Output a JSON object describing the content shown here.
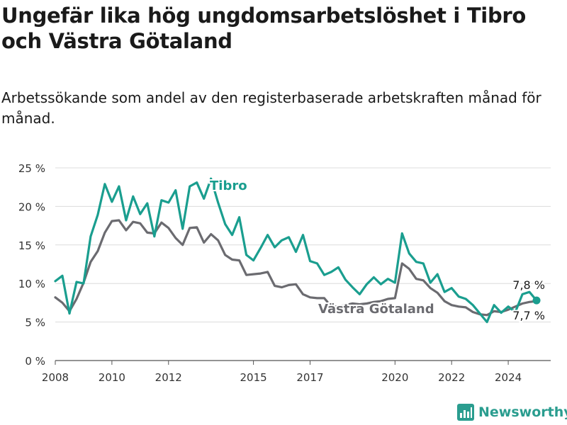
{
  "title": "Ungefär lika hög ungdomsarbetslöshet i Tibro och Västra Götaland",
  "subtitle": "Arbetssökande som andel av den registerbaserade arbetskraften månad för månad.",
  "brand": {
    "name": "Newsworthy",
    "color": "#2a9d8f"
  },
  "chart_data": {
    "type": "line",
    "title": "Ungefär lika hög ungdomsarbetslöshet i Tibro och Västra Götaland",
    "xlabel": "",
    "ylabel": "",
    "x_ticks": [
      "2008",
      "2010",
      "2012",
      "2015",
      "2017",
      "2020",
      "2022",
      "2024"
    ],
    "y_ticks": [
      "0 %",
      "5 %",
      "10 %",
      "15 %",
      "20 %",
      "25 %"
    ],
    "ylim": [
      0,
      25
    ],
    "xlim": [
      "2008-01",
      "2025-07"
    ],
    "grid": true,
    "series": [
      {
        "name": "Tibro",
        "color": "#1a9e8f",
        "end_label": "7,8 %",
        "points": [
          [
            "2008-01",
            10.3
          ],
          [
            "2008-04",
            11.0
          ],
          [
            "2008-07",
            6.1
          ],
          [
            "2008-10",
            10.2
          ],
          [
            "2009-01",
            10.0
          ],
          [
            "2009-04",
            16.1
          ],
          [
            "2009-07",
            18.9
          ],
          [
            "2009-10",
            22.9
          ],
          [
            "2010-01",
            20.6
          ],
          [
            "2010-04",
            22.6
          ],
          [
            "2010-07",
            18.2
          ],
          [
            "2010-10",
            21.3
          ],
          [
            "2011-01",
            19.0
          ],
          [
            "2011-04",
            20.4
          ],
          [
            "2011-07",
            16.1
          ],
          [
            "2011-10",
            20.8
          ],
          [
            "2012-01",
            20.5
          ],
          [
            "2012-04",
            22.1
          ],
          [
            "2012-07",
            17.1
          ],
          [
            "2012-10",
            22.6
          ],
          [
            "2013-01",
            23.1
          ],
          [
            "2013-04",
            21.0
          ],
          [
            "2013-07",
            23.6
          ],
          [
            "2013-10",
            20.5
          ],
          [
            "2014-01",
            17.7
          ],
          [
            "2014-04",
            16.3
          ],
          [
            "2014-07",
            18.6
          ],
          [
            "2014-10",
            13.7
          ],
          [
            "2015-01",
            13.0
          ],
          [
            "2015-04",
            14.6
          ],
          [
            "2015-07",
            16.3
          ],
          [
            "2015-10",
            14.7
          ],
          [
            "2016-01",
            15.6
          ],
          [
            "2016-04",
            16.0
          ],
          [
            "2016-07",
            14.1
          ],
          [
            "2016-10",
            16.3
          ],
          [
            "2017-01",
            12.9
          ],
          [
            "2017-04",
            12.6
          ],
          [
            "2017-07",
            11.1
          ],
          [
            "2017-10",
            11.5
          ],
          [
            "2018-01",
            12.1
          ],
          [
            "2018-04",
            10.5
          ],
          [
            "2018-07",
            9.5
          ],
          [
            "2018-10",
            8.6
          ],
          [
            "2019-01",
            9.9
          ],
          [
            "2019-04",
            10.8
          ],
          [
            "2019-07",
            9.9
          ],
          [
            "2019-10",
            10.6
          ],
          [
            "2020-01",
            10.1
          ],
          [
            "2020-04",
            16.5
          ],
          [
            "2020-07",
            13.9
          ],
          [
            "2020-10",
            12.8
          ],
          [
            "2021-01",
            12.6
          ],
          [
            "2021-04",
            10.1
          ],
          [
            "2021-07",
            11.2
          ],
          [
            "2021-10",
            8.9
          ],
          [
            "2022-01",
            9.4
          ],
          [
            "2022-04",
            8.3
          ],
          [
            "2022-07",
            8.0
          ],
          [
            "2022-10",
            7.2
          ],
          [
            "2023-01",
            6.1
          ],
          [
            "2023-04",
            5.0
          ],
          [
            "2023-07",
            7.2
          ],
          [
            "2023-10",
            6.2
          ],
          [
            "2024-01",
            7.0
          ],
          [
            "2024-04",
            6.3
          ],
          [
            "2024-07",
            8.6
          ],
          [
            "2024-10",
            8.9
          ],
          [
            "2025-01",
            7.8
          ]
        ]
      },
      {
        "name": "Västra Götaland",
        "color": "#6b6b70",
        "end_label": "7,7 %",
        "points": [
          [
            "2008-01",
            8.2
          ],
          [
            "2008-04",
            7.5
          ],
          [
            "2008-07",
            6.4
          ],
          [
            "2008-10",
            8.0
          ],
          [
            "2009-01",
            10.1
          ],
          [
            "2009-04",
            12.8
          ],
          [
            "2009-07",
            14.2
          ],
          [
            "2009-10",
            16.6
          ],
          [
            "2010-01",
            18.1
          ],
          [
            "2010-04",
            18.2
          ],
          [
            "2010-07",
            16.9
          ],
          [
            "2010-10",
            18.0
          ],
          [
            "2011-01",
            17.8
          ],
          [
            "2011-04",
            16.6
          ],
          [
            "2011-07",
            16.5
          ],
          [
            "2011-10",
            17.9
          ],
          [
            "2012-01",
            17.2
          ],
          [
            "2012-04",
            15.9
          ],
          [
            "2012-07",
            15.0
          ],
          [
            "2012-10",
            17.2
          ],
          [
            "2013-01",
            17.3
          ],
          [
            "2013-04",
            15.3
          ],
          [
            "2013-07",
            16.4
          ],
          [
            "2013-10",
            15.6
          ],
          [
            "2014-01",
            13.7
          ],
          [
            "2014-04",
            13.1
          ],
          [
            "2014-07",
            13.0
          ],
          [
            "2014-10",
            11.1
          ],
          [
            "2015-01",
            11.2
          ],
          [
            "2015-04",
            11.3
          ],
          [
            "2015-07",
            11.5
          ],
          [
            "2015-10",
            9.7
          ],
          [
            "2016-01",
            9.5
          ],
          [
            "2016-04",
            9.8
          ],
          [
            "2016-07",
            9.9
          ],
          [
            "2016-10",
            8.6
          ],
          [
            "2017-01",
            8.2
          ],
          [
            "2017-04",
            8.1
          ],
          [
            "2017-07",
            8.1
          ],
          [
            "2017-10",
            7.0
          ],
          [
            "2018-01",
            7.0
          ],
          [
            "2018-04",
            7.2
          ],
          [
            "2018-07",
            7.4
          ],
          [
            "2018-10",
            7.3
          ],
          [
            "2019-01",
            7.4
          ],
          [
            "2019-04",
            7.6
          ],
          [
            "2019-07",
            7.7
          ],
          [
            "2019-10",
            8.0
          ],
          [
            "2020-01",
            8.1
          ],
          [
            "2020-04",
            12.6
          ],
          [
            "2020-07",
            11.9
          ],
          [
            "2020-10",
            10.6
          ],
          [
            "2021-01",
            10.4
          ],
          [
            "2021-04",
            9.4
          ],
          [
            "2021-07",
            8.8
          ],
          [
            "2021-10",
            7.7
          ],
          [
            "2022-01",
            7.2
          ],
          [
            "2022-04",
            7.0
          ],
          [
            "2022-07",
            6.9
          ],
          [
            "2022-10",
            6.3
          ],
          [
            "2023-01",
            6.0
          ],
          [
            "2023-04",
            5.9
          ],
          [
            "2023-07",
            6.4
          ],
          [
            "2023-10",
            6.3
          ],
          [
            "2024-01",
            6.6
          ],
          [
            "2024-04",
            7.0
          ],
          [
            "2024-07",
            7.4
          ],
          [
            "2024-10",
            7.6
          ],
          [
            "2025-01",
            7.7
          ]
        ]
      }
    ]
  }
}
